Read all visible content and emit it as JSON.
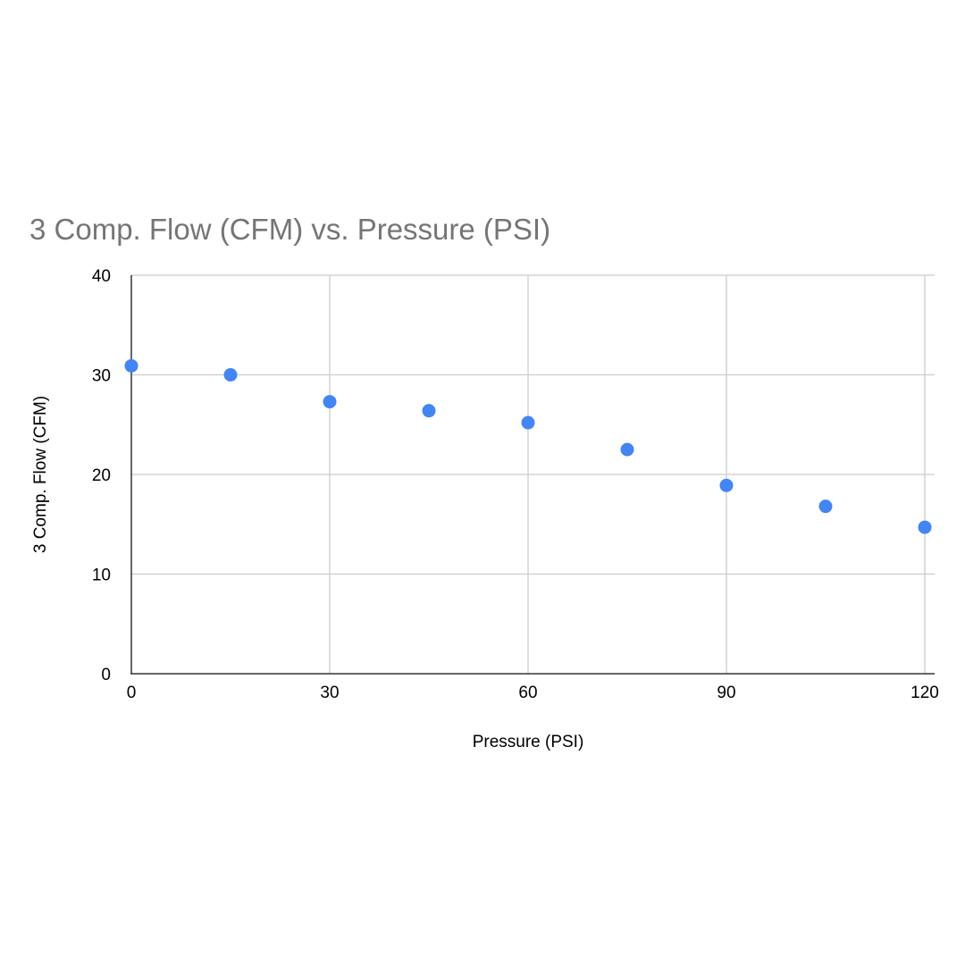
{
  "chart_data": {
    "type": "scatter",
    "title": "3 Comp. Flow (CFM) vs. Pressure (PSI)",
    "xlabel": "Pressure (PSI)",
    "ylabel": "3 Comp. Flow (CFM)",
    "xlim": [
      0,
      120
    ],
    "ylim": [
      0,
      40
    ],
    "x_ticks": [
      0,
      30,
      60,
      90,
      120
    ],
    "y_ticks": [
      0,
      10,
      20,
      30,
      40
    ],
    "x_tick_labels": [
      "0",
      "30",
      "60",
      "90",
      "120"
    ],
    "y_tick_labels": [
      "0",
      "10",
      "20",
      "30",
      "40"
    ],
    "grid": true,
    "legend": "none",
    "series": [
      {
        "x": [
          0,
          15,
          30,
          45,
          60,
          75,
          90,
          105,
          120
        ],
        "y": [
          30.9,
          30.0,
          27.3,
          26.4,
          25.2,
          22.5,
          18.9,
          16.8,
          14.7
        ],
        "color": "#4285f4"
      }
    ],
    "colors": {
      "title": "#757575",
      "grid": "#cccccc",
      "axis": "#333333",
      "text": "#000000"
    }
  }
}
